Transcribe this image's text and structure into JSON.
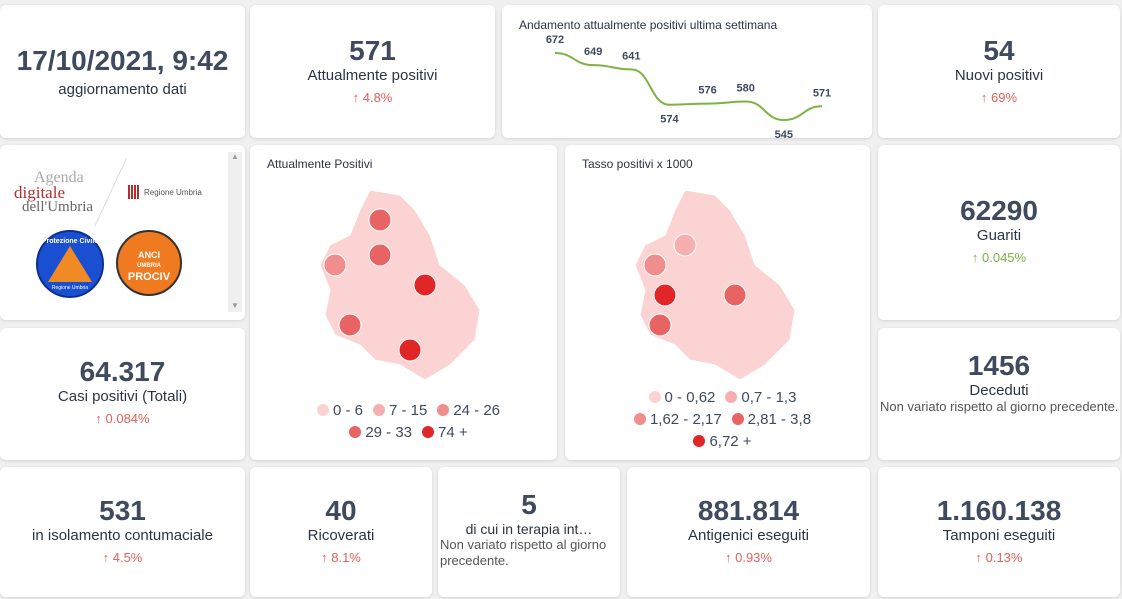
{
  "update": {
    "date": "17/10/2021, 9:42",
    "label": "aggiornamento dati"
  },
  "positivi": {
    "value": "571",
    "label": "Attualmente positivi",
    "change": "↑ 4.8%"
  },
  "chart_data": {
    "type": "line",
    "title": "Andamento attualmente positivi ultima settimana",
    "values": [
      672,
      649,
      641,
      574,
      576,
      580,
      545,
      571
    ],
    "color": "#7cb342"
  },
  "nuovi": {
    "value": "54",
    "label": "Nuovi positivi",
    "change": "↑ 69%"
  },
  "logos": {
    "agenda": [
      "Agenda",
      "digitale",
      "dell'Umbria"
    ],
    "regione": "Regione Umbria",
    "protezione": "Protezione Civile",
    "protezione_sub": "Regione Umbria",
    "anci": [
      "ANCI",
      "UMBRIA",
      "PROCIV"
    ]
  },
  "map1": {
    "title": "Attualmente Positivi",
    "legend": [
      {
        "label": "0 - 6",
        "color": "#fbd3d3"
      },
      {
        "label": "7 - 15",
        "color": "#f7aeae"
      },
      {
        "label": "24 - 26",
        "color": "#f08d8d"
      },
      {
        "label": "29 - 33",
        "color": "#e86464"
      },
      {
        "label": "74 +",
        "color": "#e02626"
      }
    ]
  },
  "map2": {
    "title": "Tasso positivi x 1000",
    "legend": [
      {
        "label": "0 - 0,62",
        "color": "#fbd3d3"
      },
      {
        "label": "0,7 - 1,3",
        "color": "#f7aeae"
      },
      {
        "label": "1,62 - 2,17",
        "color": "#f08d8d"
      },
      {
        "label": "2,81 - 3,8",
        "color": "#e86464"
      },
      {
        "label": "6,72 +",
        "color": "#e02626"
      }
    ]
  },
  "guariti": {
    "value": "62290",
    "label": "Guariti",
    "change": "↑ 0.045%"
  },
  "casi": {
    "value": "64.317",
    "label": "Casi positivi (Totali)",
    "change": "↑ 0.084%"
  },
  "deceduti": {
    "value": "1456",
    "label": "Deceduti",
    "note": "Non variato rispetto al giorno precedente."
  },
  "isolamento": {
    "value": "531",
    "label": "in isolamento contumaciale",
    "change": "↑ 4.5%"
  },
  "ricoverati": {
    "value": "40",
    "label": "Ricoverati",
    "change": "↑ 8.1%"
  },
  "terapia": {
    "value": "5",
    "label": "di cui in terapia int…",
    "note": "Non variato rispetto al giorno precedente."
  },
  "antigenici": {
    "value": "881.814",
    "label": "Antigenici eseguiti",
    "change": "↑ 0.93%"
  },
  "tamponi": {
    "value": "1.160.138",
    "label": "Tamponi eseguiti",
    "change": "↑ 0.13%"
  }
}
